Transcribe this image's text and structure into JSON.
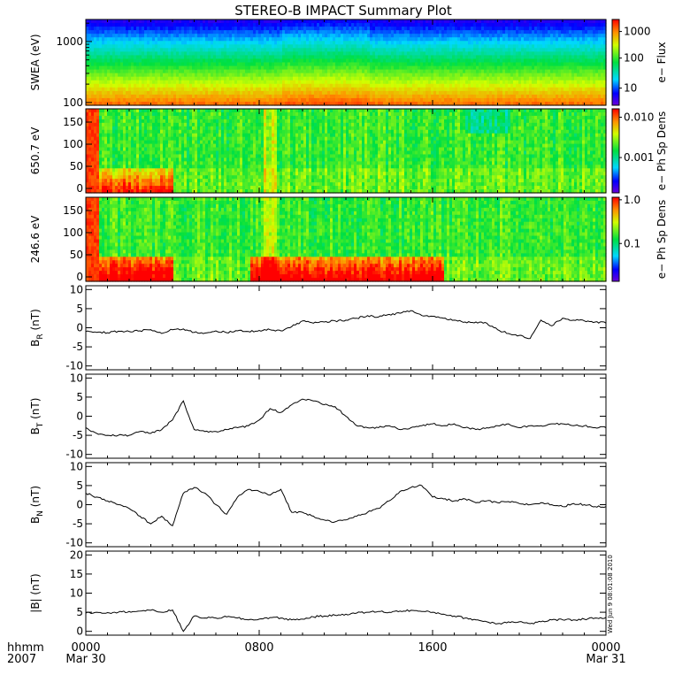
{
  "title": "STEREO-B IMPACT Summary Plot",
  "footer": {
    "left_top": "hhmm",
    "left_bottom": "2007"
  },
  "timestamp_note": "Wed Jun 9 08:01:08 2010",
  "x_axis": {
    "range_hours": [
      0,
      24
    ],
    "ticks": [
      {
        "hours": 0,
        "label": "0000",
        "sub": "Mar 30"
      },
      {
        "hours": 8,
        "label": "0800",
        "sub": ""
      },
      {
        "hours": 16,
        "label": "1600",
        "sub": ""
      },
      {
        "hours": 24,
        "label": "0000",
        "sub": "Mar 31"
      }
    ]
  },
  "spectrograms": [
    {
      "id": "swea",
      "ylabel": "SWEA (eV)",
      "yscale": "log",
      "ylim": [
        90,
        2300
      ],
      "yticks": [
        {
          "v": 100,
          "label": "100"
        },
        {
          "v": 1000,
          "label": "1000"
        }
      ],
      "colorbar_label": "e− Flux",
      "colorbar_ticks": [
        {
          "f": 0.2,
          "label": "10"
        },
        {
          "f": 0.55,
          "label": "100"
        },
        {
          "f": 0.86,
          "label": "1000"
        }
      ]
    },
    {
      "id": "pad650",
      "ylabel": "650.7 eV",
      "yscale": "linear",
      "ylim": [
        -10,
        180
      ],
      "yticks": [
        {
          "v": 0,
          "label": "0"
        },
        {
          "v": 50,
          "label": "50"
        },
        {
          "v": 100,
          "label": "100"
        },
        {
          "v": 150,
          "label": "150"
        }
      ],
      "colorbar_label": "e− Ph Sp Dens",
      "colorbar_ticks": [
        {
          "f": 0.42,
          "label": "0.001"
        },
        {
          "f": 0.9,
          "label": "0.010"
        }
      ]
    },
    {
      "id": "pad246",
      "ylabel": "246.6 eV",
      "yscale": "linear",
      "ylim": [
        -10,
        180
      ],
      "yticks": [
        {
          "v": 0,
          "label": "0"
        },
        {
          "v": 50,
          "label": "50"
        },
        {
          "v": 100,
          "label": "100"
        },
        {
          "v": 150,
          "label": "150"
        }
      ],
      "colorbar_label": "e− Ph Sp Dens",
      "colorbar_ticks": [
        {
          "f": 0.45,
          "label": "0.1"
        },
        {
          "f": 0.97,
          "label": "1.0"
        }
      ]
    }
  ],
  "chart_data": [
    {
      "type": "line",
      "id": "BR",
      "ylabel_main": "B",
      "ylabel_sub": "R",
      "ylabel_unit": " (nT)",
      "ylim": [
        -11,
        11
      ],
      "yticks": [
        -10,
        -5,
        0,
        5,
        10
      ],
      "x": [
        0,
        0.5,
        1,
        1.5,
        2,
        2.5,
        3,
        3.5,
        4,
        4.5,
        5,
        5.5,
        6,
        6.5,
        7,
        7.5,
        8,
        8.5,
        9,
        9.5,
        10,
        10.5,
        11,
        11.5,
        12,
        12.5,
        13,
        13.5,
        14,
        14.5,
        15,
        15.5,
        16,
        16.5,
        17,
        17.5,
        18,
        18.5,
        19,
        19.5,
        20,
        20.5,
        21,
        21.5,
        22,
        22.5,
        23,
        23.5,
        24
      ],
      "y": [
        -1,
        -1.2,
        -1.3,
        -0.9,
        -1,
        -0.8,
        -0.5,
        -1.5,
        -0.5,
        -0.3,
        -1.2,
        -1.4,
        -0.8,
        -1.3,
        -0.8,
        -1,
        -0.7,
        -0.5,
        -0.8,
        0.3,
        1.8,
        1.2,
        1.5,
        1.8,
        2,
        2.5,
        3.2,
        2.8,
        3.5,
        3.8,
        4.5,
        3.2,
        3,
        2.5,
        2,
        1.5,
        1.5,
        1.2,
        -0.5,
        -1.5,
        -2,
        -2.8,
        2,
        0.5,
        2.5,
        2,
        1.8,
        1.5,
        1.2
      ]
    },
    {
      "type": "line",
      "id": "BT",
      "ylabel_main": "B",
      "ylabel_sub": "T",
      "ylabel_unit": " (nT)",
      "ylim": [
        -11,
        11
      ],
      "yticks": [
        -10,
        -5,
        0,
        5,
        10
      ],
      "x": [
        0,
        0.5,
        1,
        1.5,
        2,
        2.5,
        3,
        3.5,
        4,
        4.5,
        5,
        5.5,
        6,
        6.5,
        7,
        7.5,
        8,
        8.5,
        9,
        9.5,
        10,
        10.5,
        11,
        11.5,
        12,
        12.5,
        13,
        13.5,
        14,
        14.5,
        15,
        15.5,
        16,
        16.5,
        17,
        17.5,
        18,
        18.5,
        19,
        19.5,
        20,
        20.5,
        21,
        21.5,
        22,
        22.5,
        23,
        23.5,
        24
      ],
      "y": [
        -3,
        -4.5,
        -5,
        -5,
        -5,
        -4,
        -4.5,
        -3.5,
        -1,
        4,
        -3.5,
        -4,
        -4,
        -3.5,
        -3,
        -2.5,
        -1,
        2,
        1,
        3,
        4.5,
        4,
        3,
        2.5,
        0,
        -2.5,
        -3,
        -3,
        -2.5,
        -3.5,
        -3,
        -2.5,
        -2,
        -2.5,
        -2,
        -3,
        -3.5,
        -3,
        -2.5,
        -2,
        -3,
        -2.5,
        -2.5,
        -2,
        -2,
        -2.5,
        -2.5,
        -3,
        -3
      ]
    },
    {
      "type": "line",
      "id": "BN",
      "ylabel_main": "B",
      "ylabel_sub": "N",
      "ylabel_unit": " (nT)",
      "ylim": [
        -11,
        11
      ],
      "yticks": [
        -10,
        -5,
        0,
        5,
        10
      ],
      "x": [
        0,
        0.5,
        1,
        1.5,
        2,
        2.5,
        3,
        3.5,
        4,
        4.5,
        5,
        5.5,
        6,
        6.5,
        7,
        7.5,
        8,
        8.5,
        9,
        9.5,
        10,
        10.5,
        11,
        11.5,
        12,
        12.5,
        13,
        13.5,
        14,
        14.5,
        15,
        15.5,
        16,
        16.5,
        17,
        17.5,
        18,
        18.5,
        19,
        19.5,
        20,
        20.5,
        21,
        21.5,
        22,
        22.5,
        23,
        23.5,
        24
      ],
      "y": [
        3,
        2,
        1,
        0,
        -1,
        -3,
        -5,
        -3,
        -5.5,
        3,
        4.5,
        3,
        0,
        -2.5,
        2,
        4,
        3.5,
        2.5,
        4,
        -2,
        -2,
        -3,
        -4,
        -4.5,
        -4,
        -3,
        -2,
        -1,
        1,
        3.5,
        4.5,
        5,
        2,
        1.5,
        1,
        1.5,
        0.5,
        1,
        0.5,
        0.8,
        0.3,
        0,
        0.5,
        0,
        -0.5,
        0.3,
        0,
        -0.5,
        -0.5
      ]
    },
    {
      "type": "line",
      "id": "B",
      "ylabel_main": "|B| (nT)",
      "ylabel_sub": "",
      "ylabel_unit": "",
      "ylim": [
        -1,
        21
      ],
      "yticks": [
        0,
        5,
        10,
        15,
        20
      ],
      "x": [
        0,
        0.5,
        1,
        1.5,
        2,
        2.5,
        3,
        3.5,
        4,
        4.5,
        5,
        5.5,
        6,
        6.5,
        7,
        7.5,
        8,
        8.5,
        9,
        9.5,
        10,
        10.5,
        11,
        11.5,
        12,
        12.5,
        13,
        13.5,
        14,
        14.5,
        15,
        15.5,
        16,
        16.5,
        17,
        17.5,
        18,
        18.5,
        19,
        19.5,
        20,
        20.5,
        21,
        21.5,
        22,
        22.5,
        23,
        23.5,
        24
      ],
      "y": [
        4.8,
        5,
        4.9,
        5,
        5.2,
        5.3,
        5.5,
        5,
        5.6,
        0,
        4,
        3.5,
        3.5,
        3.8,
        3.5,
        3,
        3.2,
        3.6,
        3.5,
        3,
        3.2,
        3.8,
        4,
        4.2,
        4.5,
        4.8,
        5,
        5.2,
        5,
        5.3,
        5.5,
        5.2,
        5,
        4.5,
        4,
        3.5,
        3,
        2.5,
        2,
        2.5,
        2.5,
        2,
        2.5,
        3,
        3,
        3,
        3.2,
        3.5,
        3.6
      ]
    }
  ]
}
